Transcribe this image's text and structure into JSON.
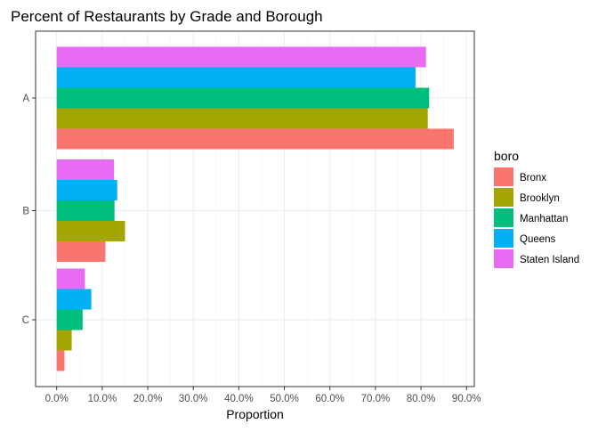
{
  "chart_data": {
    "type": "bar",
    "orientation": "horizontal",
    "title": "Percent of Restaurants by Grade and Borough",
    "xlabel": "Proportion",
    "ylabel": "",
    "categories": [
      "A",
      "B",
      "C"
    ],
    "xlim": [
      0,
      0.9
    ],
    "x_ticks": [
      0,
      0.1,
      0.2,
      0.3,
      0.4,
      0.5,
      0.6,
      0.7,
      0.8,
      0.9
    ],
    "x_tick_labels": [
      "0.0%",
      "10.0%",
      "20.0%",
      "30.0%",
      "40.0%",
      "50.0%",
      "60.0%",
      "70.0%",
      "80.0%",
      "90.0%"
    ],
    "grid": true,
    "legend": {
      "title": "boro",
      "placement": "right"
    },
    "series": [
      {
        "name": "Bronx",
        "color": "#F8766D",
        "values": [
          0.872,
          0.107,
          0.017
        ]
      },
      {
        "name": "Brooklyn",
        "color": "#A3A500",
        "values": [
          0.815,
          0.15,
          0.033
        ]
      },
      {
        "name": "Manhattan",
        "color": "#00BF7D",
        "values": [
          0.818,
          0.127,
          0.057
        ]
      },
      {
        "name": "Queens",
        "color": "#00B0F6",
        "values": [
          0.788,
          0.133,
          0.076
        ]
      },
      {
        "name": "Staten Island",
        "color": "#E76BF3",
        "values": [
          0.811,
          0.126,
          0.062
        ]
      }
    ]
  }
}
